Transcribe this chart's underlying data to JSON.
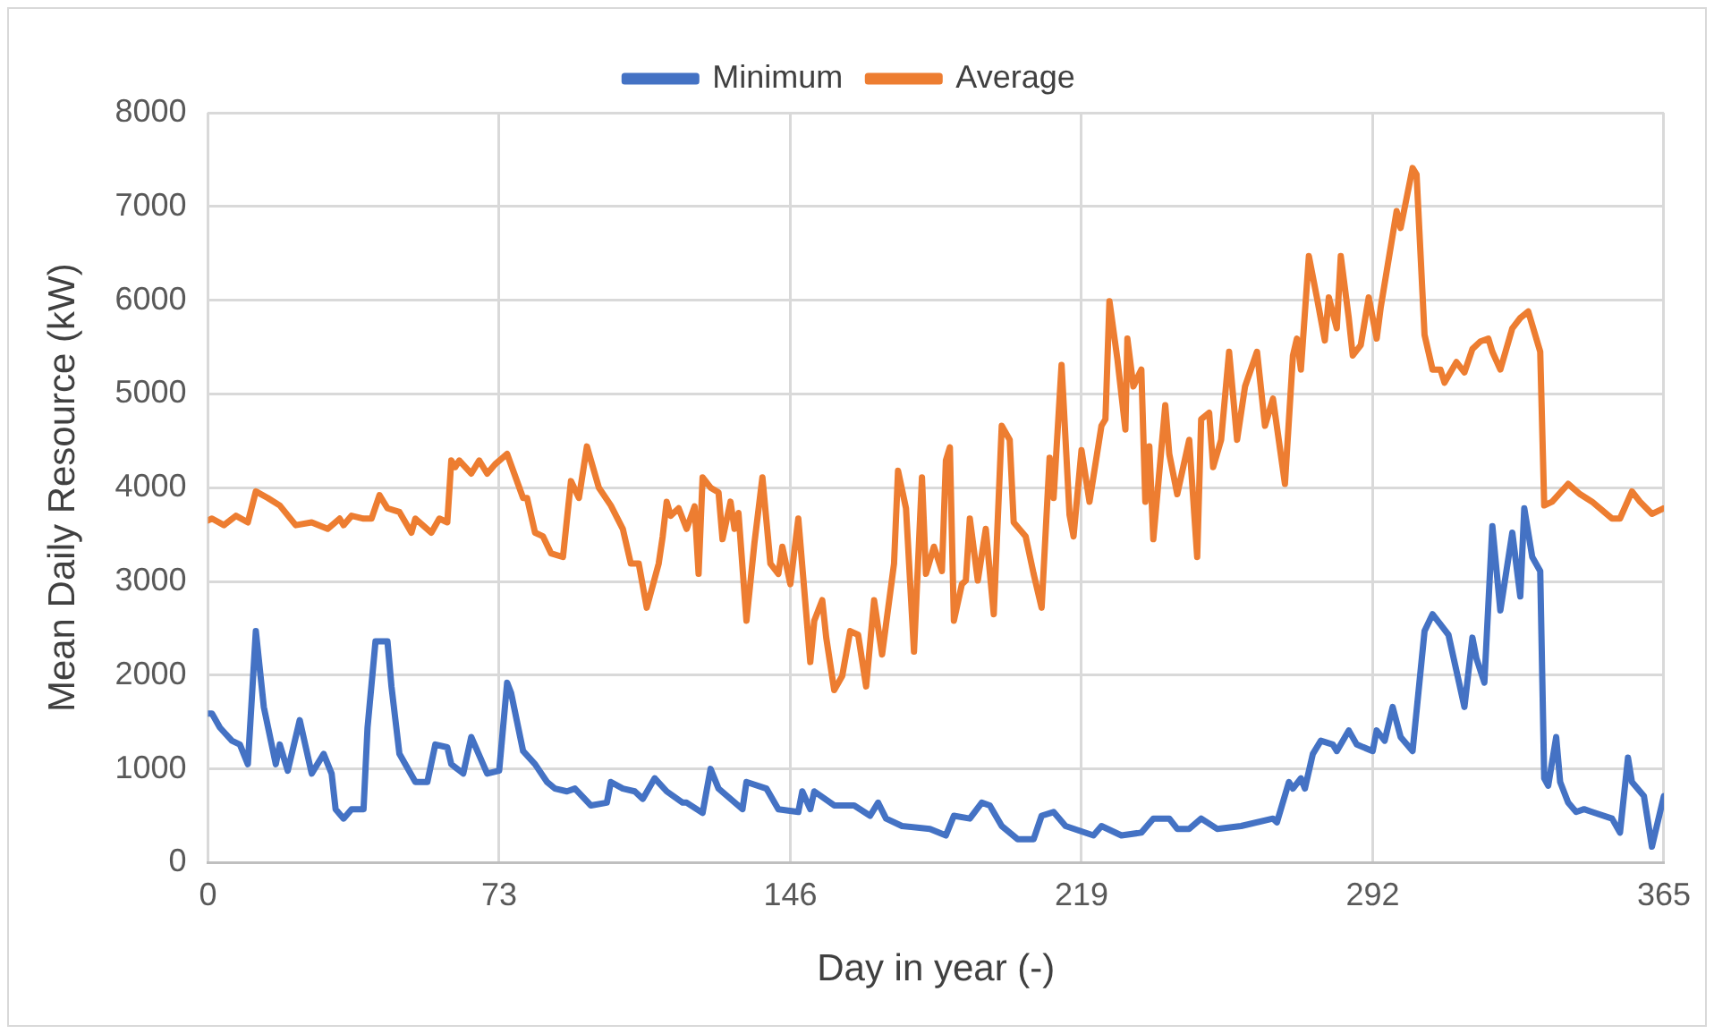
{
  "chart_data": {
    "type": "line",
    "xlabel": "Day in year (-)",
    "ylabel": "Mean Daily Resource (kW)",
    "xlim": [
      0,
      365
    ],
    "xticks": [
      0,
      73,
      146,
      219,
      292,
      365
    ],
    "ylim": [
      0,
      8000
    ],
    "yticks": [
      0,
      1000,
      2000,
      3000,
      4000,
      5000,
      6000,
      7000,
      8000
    ],
    "grid": true,
    "legend": "top",
    "marker": "none",
    "line_style": "solid",
    "series": [
      {
        "name": "Minimum",
        "color": "#4472c4",
        "x": [
          0,
          1,
          3,
          6,
          8,
          10,
          12,
          14,
          17,
          18,
          20,
          23,
          26,
          29,
          31,
          32,
          34,
          36,
          39,
          40,
          42,
          45,
          46,
          48,
          52,
          55,
          57,
          60,
          61,
          64,
          66,
          70,
          73,
          75,
          76,
          79,
          82,
          85,
          87,
          90,
          92,
          96,
          100,
          101,
          104,
          107,
          109,
          112,
          115,
          119,
          120,
          124,
          126,
          128,
          134,
          135,
          140,
          143,
          148,
          149,
          151,
          152,
          157,
          162,
          166,
          168,
          170,
          174,
          181,
          185,
          187,
          191,
          194,
          196,
          199,
          203,
          207,
          209,
          212,
          215,
          222,
          224,
          229,
          234,
          237,
          241,
          243,
          246,
          249,
          253,
          259,
          267,
          268,
          271,
          272,
          274,
          275,
          277,
          279,
          282,
          283,
          286,
          288,
          292,
          293,
          295,
          297,
          299,
          302,
          305,
          307,
          309,
          311,
          315,
          317,
          318,
          320,
          322,
          324,
          327,
          329,
          330,
          332,
          334,
          335,
          336,
          338,
          339,
          341,
          343,
          345,
          347,
          352,
          354,
          356,
          357,
          360,
          362,
          365
        ],
        "values": [
          1590,
          1590,
          1440,
          1300,
          1260,
          1050,
          2470,
          1660,
          1050,
          1260,
          980,
          1520,
          950,
          1160,
          950,
          570,
          470,
          570,
          570,
          1440,
          2360,
          2360,
          1880,
          1160,
          860,
          860,
          1260,
          1230,
          1050,
          950,
          1340,
          950,
          980,
          1920,
          1810,
          1190,
          1050,
          860,
          790,
          760,
          790,
          610,
          640,
          860,
          790,
          760,
          680,
          900,
          760,
          640,
          640,
          530,
          1000,
          790,
          570,
          860,
          790,
          570,
          540,
          760,
          570,
          760,
          610,
          610,
          500,
          640,
          470,
          390,
          360,
          290,
          500,
          470,
          640,
          610,
          390,
          250,
          250,
          500,
          540,
          390,
          290,
          390,
          290,
          320,
          470,
          470,
          360,
          360,
          470,
          360,
          390,
          470,
          430,
          860,
          790,
          900,
          790,
          1160,
          1300,
          1260,
          1190,
          1410,
          1260,
          1190,
          1410,
          1300,
          1660,
          1340,
          1190,
          2470,
          2650,
          2540,
          2430,
          1660,
          2400,
          2180,
          1920,
          3590,
          2690,
          3520,
          2840,
          3780,
          3260,
          3110,
          900,
          820,
          1340,
          860,
          640,
          540,
          570,
          540,
          470,
          320,
          1120,
          860,
          710,
          170,
          710
        ]
      },
      {
        "name": "Average",
        "color": "#ed7d31",
        "x": [
          0,
          1,
          4,
          7,
          10,
          12,
          15,
          18,
          22,
          26,
          30,
          33,
          34,
          36,
          39,
          41,
          43,
          45,
          48,
          51,
          52,
          56,
          58,
          60,
          61,
          62,
          63,
          66,
          68,
          70,
          72,
          75,
          79,
          80,
          82,
          84,
          86,
          89,
          91,
          93,
          95,
          98,
          101,
          104,
          106,
          108,
          110,
          113,
          114,
          115,
          116,
          118,
          120,
          122,
          123,
          124,
          126,
          128,
          129,
          131,
          132,
          133,
          135,
          137,
          139,
          141,
          143,
          144,
          146,
          148,
          151,
          152,
          154,
          155,
          157,
          159,
          161,
          163,
          165,
          167,
          169,
          172,
          173,
          175,
          177,
          179,
          180,
          182,
          184,
          185,
          186,
          187,
          189,
          190,
          191,
          193,
          195,
          197,
          199,
          201,
          202,
          205,
          207,
          209,
          211,
          212,
          214,
          216,
          217,
          219,
          221,
          224,
          225,
          226,
          228,
          230,
          230.5,
          232,
          234,
          235,
          236,
          237,
          240,
          241,
          243,
          246,
          248,
          249,
          251,
          252,
          254,
          256,
          258,
          260,
          263,
          265,
          267,
          270,
          272,
          273,
          274,
          276,
          278,
          280,
          281,
          283,
          284,
          286,
          287,
          289,
          291,
          293,
          294,
          298,
          299,
          302,
          303,
          305,
          307,
          309,
          310,
          313,
          315,
          317,
          319,
          321,
          322,
          324,
          327,
          329,
          331,
          334,
          335,
          337,
          341,
          344,
          347,
          352,
          354,
          357,
          359,
          362,
          365
        ],
        "values": [
          3650,
          3670,
          3600,
          3700,
          3630,
          3960,
          3890,
          3810,
          3600,
          3630,
          3560,
          3670,
          3600,
          3700,
          3670,
          3670,
          3920,
          3780,
          3740,
          3520,
          3670,
          3520,
          3670,
          3630,
          4290,
          4220,
          4290,
          4150,
          4290,
          4150,
          4250,
          4360,
          3890,
          3890,
          3520,
          3480,
          3300,
          3260,
          4070,
          3890,
          4440,
          4000,
          3810,
          3560,
          3190,
          3190,
          2720,
          3190,
          3480,
          3850,
          3700,
          3780,
          3560,
          3800,
          3080,
          4110,
          4000,
          3950,
          3450,
          3850,
          3560,
          3730,
          2580,
          3410,
          4110,
          3190,
          3080,
          3370,
          2970,
          3670,
          2140,
          2580,
          2800,
          2400,
          1840,
          1990,
          2470,
          2430,
          1880,
          2800,
          2220,
          3190,
          4180,
          3780,
          2250,
          4110,
          3080,
          3370,
          3110,
          4290,
          4430,
          2580,
          2970,
          3010,
          3670,
          3010,
          3560,
          2650,
          4660,
          4510,
          3630,
          3480,
          3080,
          2720,
          4320,
          3890,
          5310,
          3710,
          3480,
          4400,
          3850,
          4660,
          4730,
          5990,
          5370,
          4620,
          5590,
          5080,
          5260,
          3850,
          4440,
          3450,
          4880,
          4360,
          3930,
          4510,
          3260,
          4730,
          4800,
          4220,
          4510,
          5450,
          4510,
          5080,
          5450,
          4660,
          4950,
          4040,
          5410,
          5590,
          5260,
          6470,
          6030,
          5570,
          6030,
          5700,
          6470,
          5810,
          5410,
          5520,
          6030,
          5590,
          5920,
          6950,
          6770,
          7410,
          7340,
          5630,
          5260,
          5260,
          5120,
          5340,
          5230,
          5480,
          5560,
          5590,
          5450,
          5260,
          5700,
          5810,
          5880,
          5450,
          3810,
          3850,
          4040,
          3930,
          3850,
          3670,
          3670,
          3960,
          3850,
          3720,
          3780
        ]
      }
    ]
  }
}
